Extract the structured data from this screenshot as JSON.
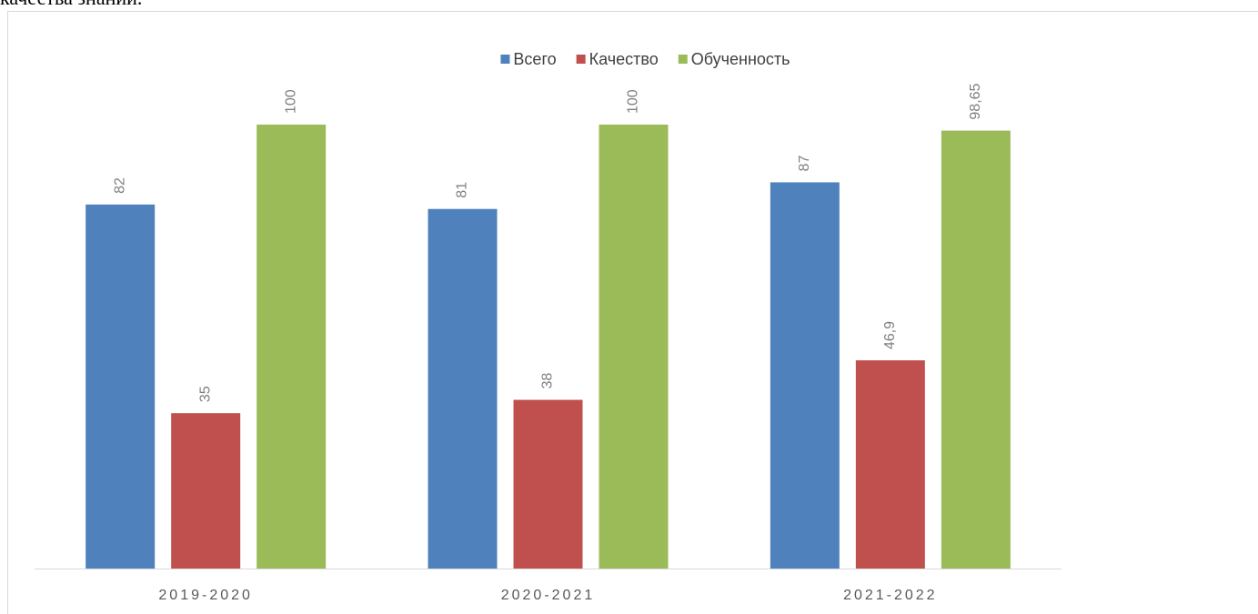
{
  "caption": "качества знаний.",
  "chart_data": {
    "type": "bar",
    "categories": [
      "2019-2020",
      "2020-2021",
      "2021-2022"
    ],
    "series": [
      {
        "name": "Всего",
        "color": "#4f81bd",
        "values": [
          82,
          81,
          87
        ]
      },
      {
        "name": "Качество",
        "color": "#c0504d",
        "values": [
          35,
          38,
          46.9
        ],
        "value_labels": [
          "35",
          "38",
          "46,9"
        ]
      },
      {
        "name": "Обученность",
        "color": "#9bbb59",
        "values": [
          100,
          100,
          98.65
        ],
        "value_labels": [
          "100",
          "100",
          "98,65"
        ]
      }
    ],
    "ylim": [
      0,
      100
    ],
    "legend": "top"
  }
}
